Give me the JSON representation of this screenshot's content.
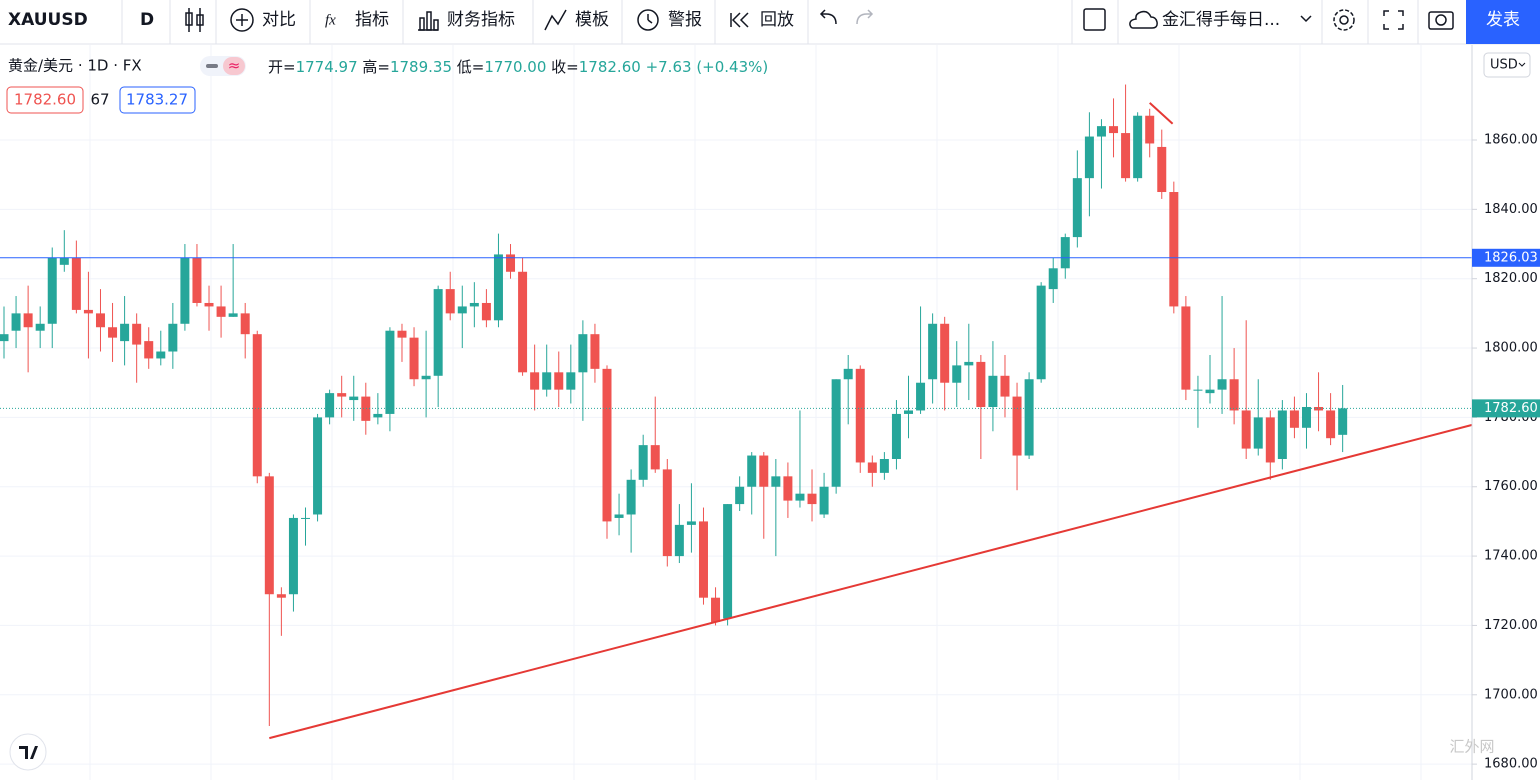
{
  "toolbar": {
    "symbol": "XAUUSD",
    "interval": "D",
    "compare": "对比",
    "indicators": "指标",
    "financials": "财务指标",
    "templates": "模板",
    "alert": "警报",
    "replay": "回放",
    "layout_name": "金汇得手每日...",
    "publish": "发表"
  },
  "legend": {
    "title": "黄金/美元 · 1D · FX",
    "open_label": "开=",
    "open": "1774.97",
    "high_label": "高=",
    "high": "1789.35",
    "low_label": "低=",
    "low": "1770.00",
    "close_label": "收=",
    "close": "1782.60",
    "change": "+7.63",
    "change_pct": "(+0.43%)",
    "bid": "1782.60",
    "spread": "67",
    "ask": "1783.27"
  },
  "currency": "USD",
  "watermark": "汇外网",
  "chart_data": {
    "type": "candlestick",
    "up_color": "#26a69a",
    "down_color": "#ef5350",
    "open": [
      1802,
      1805,
      1810,
      1805,
      1807,
      1824,
      1826,
      1811,
      1810,
      1806,
      1802,
      1807,
      1802,
      1797,
      1799,
      1807,
      1826,
      1813,
      1812,
      1809,
      1810,
      1804,
      1763,
      1729,
      1729,
      1751,
      1752,
      1780,
      1787,
      1785,
      1786,
      1780,
      1781,
      1805,
      1803,
      1791,
      1792,
      1817,
      1810,
      1812,
      1813,
      1808,
      1827,
      1822,
      1793,
      1788,
      1793,
      1788,
      1793,
      1804,
      1794,
      1751,
      1752,
      1762,
      1772,
      1765,
      1740,
      1749,
      1750,
      1728,
      1722,
      1755,
      1760,
      1769,
      1760,
      1763,
      1756,
      1758,
      1752,
      1760,
      1791,
      1794,
      1767,
      1764,
      1768,
      1781,
      1782,
      1791,
      1807,
      1790,
      1795,
      1796,
      1783,
      1792,
      1786,
      1769,
      1791,
      1817,
      1823,
      1832,
      1849,
      1861,
      1864,
      1862,
      1849,
      1867,
      1858,
      1845,
      1812,
      1788,
      1787,
      1788,
      1791,
      1782,
      1771,
      1780,
      1768,
      1782,
      1777,
      1783,
      1782,
      1774.97
    ],
    "high": [
      1812,
      1815,
      1818,
      1812,
      1829,
      1834,
      1831,
      1822,
      1817,
      1813,
      1815,
      1810,
      1806,
      1805,
      1813,
      1830,
      1830,
      1818,
      1818,
      1830,
      1813,
      1805,
      1764,
      1731,
      1752,
      1754,
      1781,
      1788,
      1792,
      1792,
      1790,
      1787,
      1806,
      1807,
      1806,
      1805,
      1818,
      1822,
      1818,
      1819,
      1817,
      1833,
      1830,
      1826,
      1801,
      1801,
      1799,
      1801,
      1808,
      1807,
      1795,
      1758,
      1765,
      1775,
      1786,
      1768,
      1755,
      1761,
      1754,
      1731,
      1755,
      1763,
      1770,
      1770,
      1768,
      1767,
      1782,
      1765,
      1764,
      1791,
      1798,
      1795,
      1769,
      1770,
      1785,
      1792,
      1812,
      1810,
      1809,
      1802,
      1807,
      1798,
      1802,
      1798,
      1790,
      1793,
      1819,
      1826,
      1833,
      1857,
      1868,
      1866,
      1872,
      1876,
      1868,
      1869,
      1863,
      1848,
      1815,
      1792,
      1798,
      1815,
      1800,
      1808,
      1791,
      1782,
      1785,
      1786,
      1787,
      1793,
      1787,
      1789.35
    ],
    "low": [
      1797,
      1800,
      1793,
      1800,
      1800,
      1822,
      1810,
      1797,
      1799,
      1796,
      1795,
      1790,
      1794,
      1795,
      1794,
      1805,
      1812,
      1805,
      1803,
      1809,
      1797,
      1761,
      1691,
      1717,
      1724,
      1743,
      1750,
      1778,
      1780,
      1779,
      1775,
      1778,
      1776,
      1796,
      1789,
      1780,
      1783,
      1808,
      1800,
      1806,
      1806,
      1806,
      1820,
      1792,
      1782,
      1786,
      1783,
      1784,
      1779,
      1790,
      1745,
      1746,
      1741,
      1760,
      1764,
      1737,
      1738,
      1741,
      1726,
      1720,
      1720,
      1753,
      1752,
      1745,
      1740,
      1751,
      1754,
      1750,
      1751,
      1758,
      1778,
      1764,
      1760,
      1762,
      1765,
      1774,
      1781,
      1784,
      1782,
      1783,
      1785,
      1768,
      1776,
      1780,
      1759,
      1768,
      1790,
      1813,
      1820,
      1829,
      1838,
      1846,
      1855,
      1848,
      1848,
      1855,
      1843,
      1810,
      1785,
      1777,
      1784,
      1781,
      1778,
      1768,
      1769,
      1762,
      1765,
      1774,
      1771,
      1776,
      1772,
      1770
    ],
    "close": [
      1804,
      1810,
      1806,
      1807,
      1826,
      1826,
      1811,
      1810,
      1806,
      1803,
      1807,
      1801,
      1797,
      1799,
      1807,
      1826,
      1813,
      1812,
      1809,
      1810,
      1804,
      1763,
      1729,
      1728,
      1751,
      1751,
      1780,
      1787,
      1786,
      1786,
      1779,
      1781,
      1805,
      1803,
      1791,
      1792,
      1817,
      1810,
      1812,
      1813,
      1808,
      1827,
      1822,
      1793,
      1788,
      1793,
      1788,
      1793,
      1804,
      1794,
      1750,
      1752,
      1762,
      1772,
      1765,
      1740,
      1749,
      1750,
      1728,
      1721,
      1755,
      1760,
      1769,
      1760,
      1763,
      1756,
      1758,
      1755,
      1760,
      1791,
      1794,
      1767,
      1764,
      1768,
      1781,
      1782,
      1790,
      1807,
      1790,
      1795,
      1796,
      1783,
      1792,
      1786,
      1769,
      1791,
      1818,
      1823,
      1832,
      1849,
      1861,
      1864,
      1862,
      1849,
      1867,
      1859,
      1845,
      1812,
      1788,
      1788,
      1788,
      1791,
      1782,
      1771,
      1780,
      1767,
      1782,
      1777,
      1783,
      1782,
      1774,
      1782.6
    ],
    "ylim": [
      1676,
      1887.4
    ],
    "yticks": [
      {
        "value": 1680,
        "label": "1680.00"
      },
      {
        "value": 1700,
        "label": "1700.00"
      },
      {
        "value": 1720,
        "label": "1720.00"
      },
      {
        "value": 1740,
        "label": "1740.00"
      },
      {
        "value": 1760,
        "label": "1760.00"
      },
      {
        "value": 1780,
        "label": "1780.00"
      },
      {
        "value": 1800,
        "label": "1800.00"
      },
      {
        "value": 1820,
        "label": "1820.00"
      },
      {
        "value": 1840,
        "label": "1840.00"
      },
      {
        "value": 1860,
        "label": "1860.00"
      }
    ],
    "grid": true,
    "price_lines": [
      {
        "value": 1826.03,
        "label": "1826.03",
        "color": "#2962ff",
        "style": "solid"
      },
      {
        "value": 1782.6,
        "label": "1782.60",
        "color": "#26a69a",
        "style": "dotted"
      }
    ],
    "trend_lines": [
      {
        "start": [
          22,
          1687.5
        ],
        "end": [
          121.7,
          1777.8
        ],
        "color": "#e53935"
      },
      {
        "start": [
          95,
          1870.7
        ],
        "end": [
          96.9,
          1864.7
        ],
        "color": "#e53935"
      }
    ]
  }
}
